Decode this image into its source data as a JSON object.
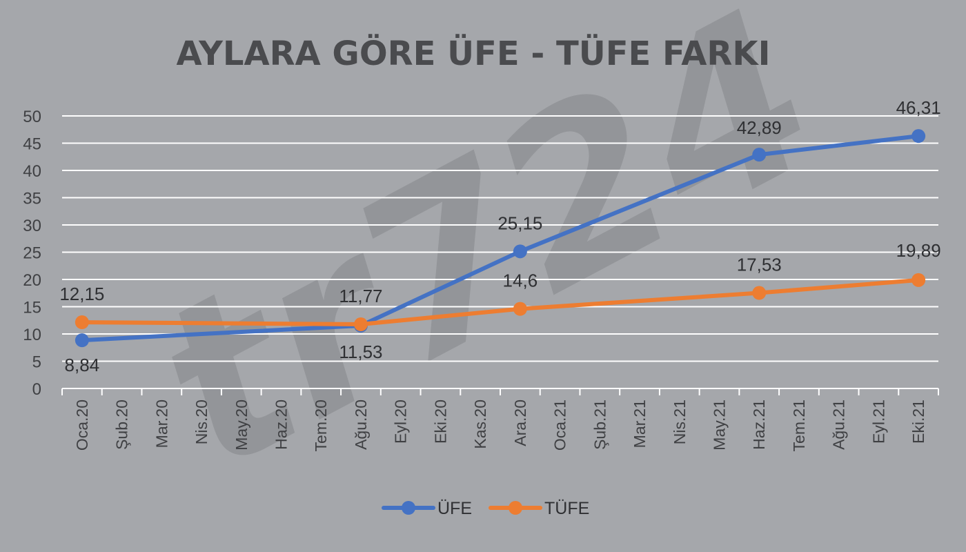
{
  "chart_data": {
    "type": "line",
    "title": "AYLARA GÖRE ÜFE - TÜFE FARKI",
    "watermark": "tr724",
    "categories": [
      "Oca.20",
      "Şub.20",
      "Mar.20",
      "Nis.20",
      "May.20",
      "Haz.20",
      "Tem.20",
      "Ağu.20",
      "Eyl.20",
      "Eki.20",
      "Kas.20",
      "Ara.20",
      "Oca.21",
      "Şub.21",
      "Mar.21",
      "Nis.21",
      "May.21",
      "Haz.21",
      "Tem.21",
      "Ağu.21",
      "Eyl.21",
      "Eki.21"
    ],
    "ylim": [
      0,
      50
    ],
    "yticks": [
      0,
      5,
      10,
      15,
      20,
      25,
      30,
      35,
      40,
      45,
      50
    ],
    "grid": true,
    "legend_position": "bottom",
    "series": [
      {
        "name": "ÜFE",
        "color": "#4472c4",
        "points": [
          {
            "category": "Oca.20",
            "value": 8.84,
            "label": "8,84"
          },
          {
            "category": "Ağu.20",
            "value": 11.53,
            "label": "11,53"
          },
          {
            "category": "Ara.20",
            "value": 25.15,
            "label": "25,15"
          },
          {
            "category": "Haz.21",
            "value": 42.89,
            "label": "42,89"
          },
          {
            "category": "Eki.21",
            "value": 46.31,
            "label": "46,31"
          }
        ]
      },
      {
        "name": "TÜFE",
        "color": "#ed7d31",
        "points": [
          {
            "category": "Oca.20",
            "value": 12.15,
            "label": "12,15"
          },
          {
            "category": "Ağu.20",
            "value": 11.77,
            "label": "11,77"
          },
          {
            "category": "Ara.20",
            "value": 14.6,
            "label": "14,6"
          },
          {
            "category": "Haz.21",
            "value": 17.53,
            "label": "17,53"
          },
          {
            "category": "Eki.21",
            "value": 19.89,
            "label": "19,89"
          }
        ]
      }
    ]
  }
}
